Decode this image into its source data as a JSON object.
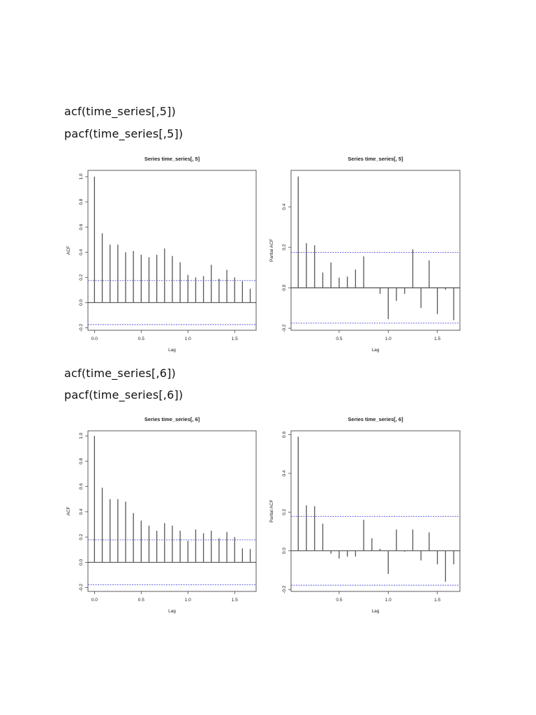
{
  "document": {
    "sections": [
      {
        "code": [
          "acf(time_series[,5])",
          "pacf(time_series[,5])"
        ]
      },
      {
        "code": [
          "acf(time_series[,6])",
          "pacf(time_series[,6])"
        ]
      }
    ]
  },
  "chart_data": [
    {
      "id": "acf5",
      "type": "bar",
      "title": "Series  time_series[, 5]",
      "xlabel": "Lag",
      "ylabel": "ACF",
      "x": [
        0.0,
        0.0833,
        0.1667,
        0.25,
        0.3333,
        0.4167,
        0.5,
        0.5833,
        0.6667,
        0.75,
        0.8333,
        0.9167,
        1.0,
        1.0833,
        1.1667,
        1.25,
        1.3333,
        1.4167,
        1.5,
        1.5833,
        1.6667
      ],
      "values": [
        1.0,
        0.55,
        0.46,
        0.46,
        0.4,
        0.41,
        0.38,
        0.36,
        0.38,
        0.43,
        0.37,
        0.32,
        0.22,
        0.2,
        0.21,
        0.3,
        0.19,
        0.26,
        0.2,
        0.17,
        0.11
      ],
      "conf_limits": [
        0.175,
        -0.175
      ],
      "xticks": [
        "0.0",
        "0.5",
        "1.0",
        "1.5"
      ],
      "yticks": [
        "-0.2",
        "0.0",
        "0.2",
        "0.4",
        "0.6",
        "0.8",
        "1.0"
      ],
      "xlim": [
        -0.07,
        1.73
      ],
      "ylim": [
        -0.22,
        1.05
      ],
      "grid": false
    },
    {
      "id": "pacf5",
      "type": "bar",
      "title": "Series  time_series[, 5]",
      "xlabel": "Lag",
      "ylabel": "Partial ACF",
      "x": [
        0.0833,
        0.1667,
        0.25,
        0.3333,
        0.4167,
        0.5,
        0.5833,
        0.6667,
        0.75,
        0.8333,
        0.9167,
        1.0,
        1.0833,
        1.1667,
        1.25,
        1.3333,
        1.4167,
        1.5,
        1.5833,
        1.6667
      ],
      "values": [
        0.55,
        0.22,
        0.21,
        0.075,
        0.125,
        0.05,
        0.055,
        0.09,
        0.155,
        0.0,
        -0.03,
        -0.155,
        -0.065,
        -0.03,
        0.19,
        -0.1,
        0.135,
        -0.13,
        -0.01,
        -0.16
      ],
      "conf_limits": [
        0.175,
        -0.175
      ],
      "xticks": [
        "0.5",
        "1.0",
        "1.5"
      ],
      "yticks": [
        "-0.2",
        "0.0",
        "0.2",
        "0.4"
      ],
      "xlim": [
        0.01,
        1.73
      ],
      "ylim": [
        -0.21,
        0.58
      ],
      "grid": false
    },
    {
      "id": "acf6",
      "type": "bar",
      "title": "Series  time_series[, 6]",
      "xlabel": "Lag",
      "ylabel": "ACF",
      "x": [
        0.0,
        0.0833,
        0.1667,
        0.25,
        0.3333,
        0.4167,
        0.5,
        0.5833,
        0.6667,
        0.75,
        0.8333,
        0.9167,
        1.0,
        1.0833,
        1.1667,
        1.25,
        1.3333,
        1.4167,
        1.5,
        1.5833,
        1.6667
      ],
      "values": [
        1.0,
        0.59,
        0.5,
        0.5,
        0.48,
        0.39,
        0.33,
        0.29,
        0.25,
        0.31,
        0.29,
        0.25,
        0.17,
        0.26,
        0.23,
        0.25,
        0.19,
        0.24,
        0.2,
        0.11,
        0.105
      ],
      "conf_limits": [
        0.178,
        -0.178
      ],
      "xticks": [
        "0.0",
        "0.5",
        "1.0",
        "1.5"
      ],
      "yticks": [
        "-0.2",
        "0.0",
        "0.2",
        "0.4",
        "0.6",
        "0.8",
        "1.0"
      ],
      "xlim": [
        -0.07,
        1.73
      ],
      "ylim": [
        -0.23,
        1.04
      ],
      "grid": false
    },
    {
      "id": "pacf6",
      "type": "bar",
      "title": "Series  time_series[, 6]",
      "xlabel": "Lag",
      "ylabel": "Partial ACF",
      "x": [
        0.0833,
        0.1667,
        0.25,
        0.3333,
        0.4167,
        0.5,
        0.5833,
        0.6667,
        0.75,
        0.8333,
        0.9167,
        1.0,
        1.0833,
        1.1667,
        1.25,
        1.3333,
        1.4167,
        1.5,
        1.5833,
        1.6667
      ],
      "values": [
        0.59,
        0.235,
        0.23,
        0.14,
        -0.015,
        -0.04,
        -0.03,
        -0.03,
        0.16,
        0.065,
        0.01,
        -0.12,
        0.11,
        -0.005,
        0.11,
        -0.05,
        0.095,
        -0.07,
        -0.16,
        -0.07
      ],
      "conf_limits": [
        0.178,
        -0.178
      ],
      "xticks": [
        "0.5",
        "1.0",
        "1.5"
      ],
      "yticks": [
        "-0.2",
        "0.0",
        "0.2",
        "0.4",
        "0.6"
      ],
      "xlim": [
        0.01,
        1.73
      ],
      "ylim": [
        -0.21,
        0.62
      ],
      "grid": false
    }
  ],
  "colors": {
    "bars": "#555555",
    "conf_line": "#5555dd",
    "axis": "#333333",
    "text": "#222222"
  }
}
